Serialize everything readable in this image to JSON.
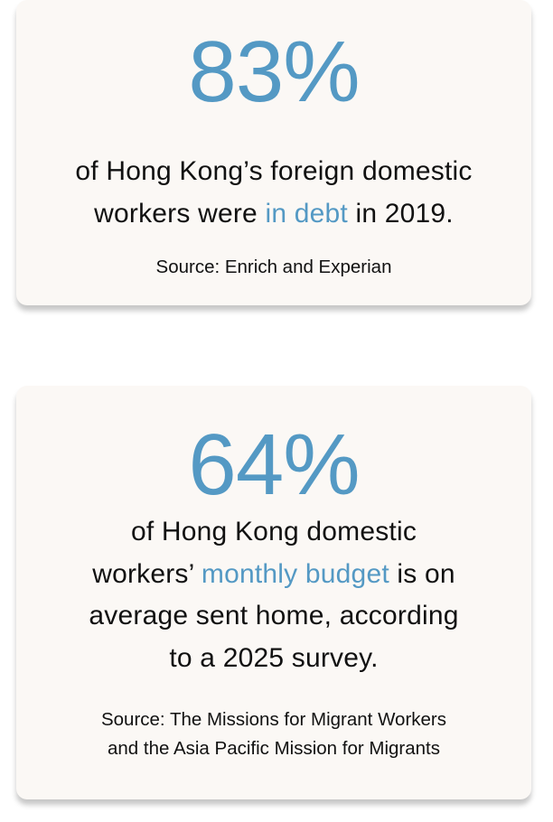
{
  "accent_color": "#5499c4",
  "cards": [
    {
      "stat": "83%",
      "lines": [
        {
          "pre": "of Hong Kong’s foreign domestic",
          "hl": "",
          "post": ""
        },
        {
          "pre": "workers were ",
          "hl": "in debt",
          "post": " in 2019."
        }
      ],
      "source_lines": [
        "Source: Enrich and Experian"
      ]
    },
    {
      "stat": "64%",
      "lines": [
        {
          "pre": "of Hong Kong domestic",
          "hl": "",
          "post": ""
        },
        {
          "pre": "workers’ ",
          "hl": "monthly budget",
          "post": " is on"
        },
        {
          "pre": "average sent home, according",
          "hl": "",
          "post": ""
        },
        {
          "pre": "to a 2025 survey.",
          "hl": "",
          "post": ""
        }
      ],
      "source_lines": [
        "Source: The Missions for Migrant Workers",
        "and the Asia Pacific Mission for Migrants"
      ]
    }
  ]
}
